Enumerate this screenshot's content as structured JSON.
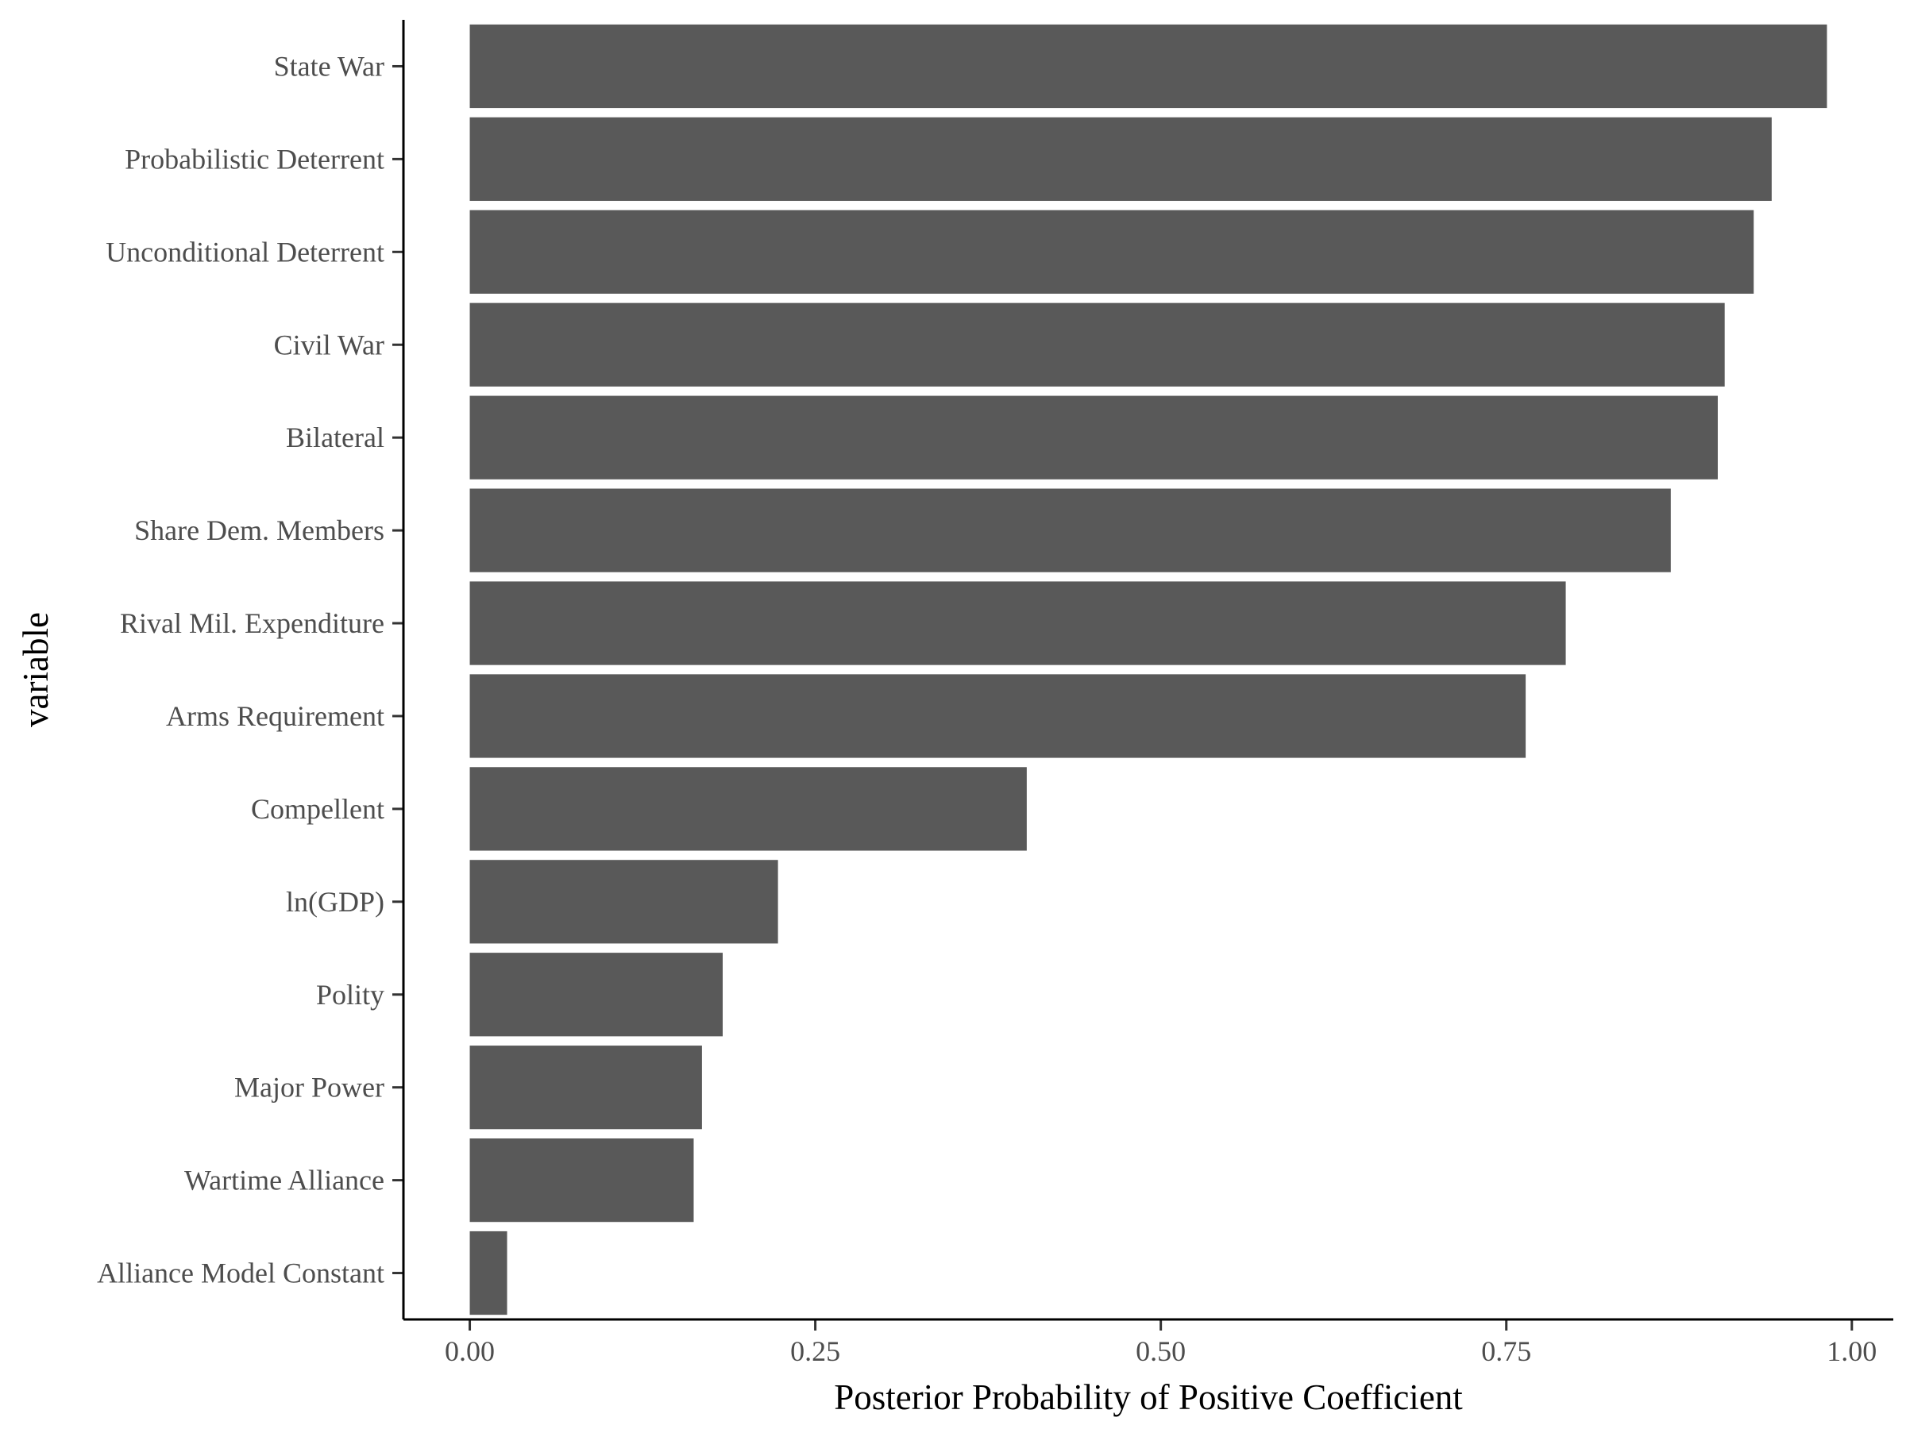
{
  "chart_data": {
    "type": "bar",
    "orientation": "horizontal",
    "xlabel": "Posterior Probability of Positive Coefficient",
    "ylabel": "variable",
    "xlim": [
      -0.048,
      1.03
    ],
    "x_ticks": [
      0.0,
      0.25,
      0.5,
      0.75,
      1.0
    ],
    "x_tick_labels": [
      "0.00",
      "0.25",
      "0.50",
      "0.75",
      "1.00"
    ],
    "grid": false,
    "bar_color": "#595959",
    "categories": [
      "State War",
      "Probabilistic Deterrent",
      "Unconditional Deterrent",
      "Civil War",
      "Bilateral",
      "Share Dem. Members",
      "Rival Mil. Expenditure",
      "Arms Requirement",
      "Compellent",
      "ln(GDP)",
      "Polity",
      "Major Power",
      "Wartime Alliance",
      "Alliance Model Constant"
    ],
    "values": [
      0.982,
      0.942,
      0.929,
      0.908,
      0.903,
      0.869,
      0.793,
      0.764,
      0.403,
      0.223,
      0.183,
      0.168,
      0.162,
      0.027
    ]
  }
}
